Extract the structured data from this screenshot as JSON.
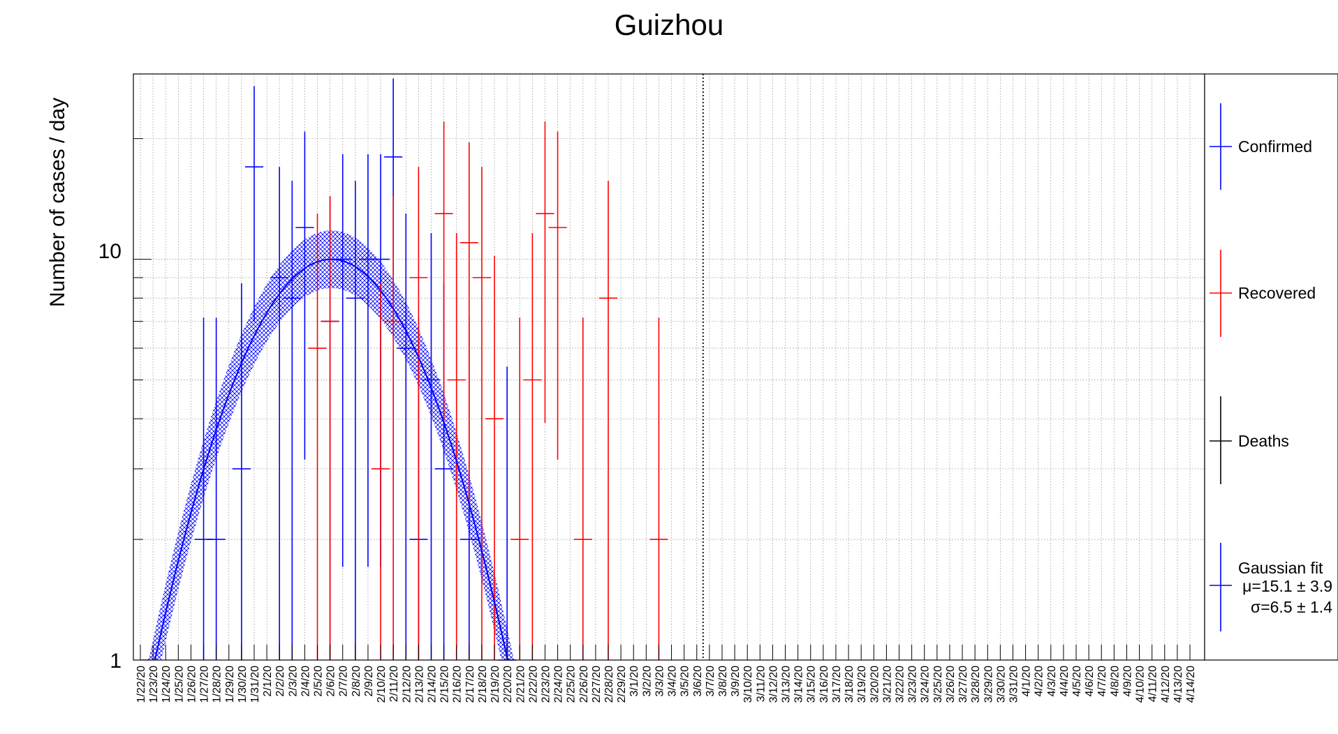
{
  "chart_data": {
    "type": "scatter",
    "title": "Guizhou",
    "ylabel": "Number of cases / day",
    "xlabel": "",
    "y_scale": "log",
    "ylim": [
      1,
      29
    ],
    "y_ticks": [
      "1",
      "10"
    ],
    "grid": true,
    "legend_position": "right",
    "colors": {
      "confirmed": "#0000ff",
      "recovered": "#ff0000",
      "deaths": "#000000",
      "fit": "#0000ff"
    },
    "categories": [
      "1/22/20",
      "1/23/20",
      "1/24/20",
      "1/25/20",
      "1/26/20",
      "1/27/20",
      "1/28/20",
      "1/29/20",
      "1/30/20",
      "1/31/20",
      "2/1/20",
      "2/2/20",
      "2/3/20",
      "2/4/20",
      "2/5/20",
      "2/6/20",
      "2/7/20",
      "2/8/20",
      "2/9/20",
      "2/10/20",
      "2/11/20",
      "2/12/20",
      "2/13/20",
      "2/14/20",
      "2/15/20",
      "2/16/20",
      "2/17/20",
      "2/18/20",
      "2/19/20",
      "2/20/20",
      "2/21/20",
      "2/22/20",
      "2/23/20",
      "2/24/20",
      "2/25/20",
      "2/26/20",
      "2/27/20",
      "2/28/20",
      "2/29/20",
      "3/1/20",
      "3/2/20",
      "3/3/20",
      "3/4/20",
      "3/5/20",
      "3/6/20",
      "3/7/20",
      "3/8/20",
      "3/9/20",
      "3/10/20",
      "3/11/20",
      "3/12/20",
      "3/13/20",
      "3/14/20",
      "3/15/20",
      "3/16/20",
      "3/17/20",
      "3/18/20",
      "3/19/20",
      "3/20/20",
      "3/21/20",
      "3/22/20",
      "3/23/20",
      "3/24/20",
      "3/25/20",
      "3/26/20",
      "3/27/20",
      "3/28/20",
      "3/29/20",
      "3/30/20",
      "3/31/20",
      "4/1/20",
      "4/2/20",
      "4/3/20",
      "4/4/20",
      "4/5/20",
      "4/6/20",
      "4/7/20",
      "4/8/20",
      "4/9/20",
      "4/10/20",
      "4/11/20",
      "4/12/20",
      "4/13/20",
      "4/14/20"
    ],
    "series": [
      {
        "name": "Confirmed",
        "points": [
          {
            "x": "1/27/20",
            "y": 2
          },
          {
            "x": "1/28/20",
            "y": 2
          },
          {
            "x": "1/30/20",
            "y": 3
          },
          {
            "x": "1/31/20",
            "y": 17
          },
          {
            "x": "2/2/20",
            "y": 9
          },
          {
            "x": "2/3/20",
            "y": 8
          },
          {
            "x": "2/4/20",
            "y": 12
          },
          {
            "x": "2/6/20",
            "y": 7
          },
          {
            "x": "2/7/20",
            "y": 10
          },
          {
            "x": "2/8/20",
            "y": 8
          },
          {
            "x": "2/9/20",
            "y": 10
          },
          {
            "x": "2/10/20",
            "y": 10
          },
          {
            "x": "2/11/20",
            "y": 18
          },
          {
            "x": "2/12/20",
            "y": 6
          },
          {
            "x": "2/13/20",
            "y": 2
          },
          {
            "x": "2/14/20",
            "y": 5
          },
          {
            "x": "2/15/20",
            "y": 3
          },
          {
            "x": "2/17/20",
            "y": 2
          },
          {
            "x": "2/20/20",
            "y": 1
          }
        ]
      },
      {
        "name": "Recovered",
        "points": [
          {
            "x": "2/5/20",
            "y": 6
          },
          {
            "x": "2/6/20",
            "y": 7
          },
          {
            "x": "2/10/20",
            "y": 3
          },
          {
            "x": "2/11/20",
            "y": 7
          },
          {
            "x": "2/13/20",
            "y": 9
          },
          {
            "x": "2/15/20",
            "y": 13
          },
          {
            "x": "2/16/20",
            "y": 5
          },
          {
            "x": "2/17/20",
            "y": 11
          },
          {
            "x": "2/18/20",
            "y": 9
          },
          {
            "x": "2/19/20",
            "y": 4
          },
          {
            "x": "2/21/20",
            "y": 2
          },
          {
            "x": "2/22/20",
            "y": 5
          },
          {
            "x": "2/23/20",
            "y": 13
          },
          {
            "x": "2/24/20",
            "y": 12
          },
          {
            "x": "2/26/20",
            "y": 2
          },
          {
            "x": "2/28/20",
            "y": 8
          },
          {
            "x": "3/3/20",
            "y": 2
          }
        ]
      },
      {
        "name": "Deaths",
        "points": []
      }
    ],
    "fit": {
      "name": "Gaussian fit",
      "mu_label": "μ=15.1 ± 3.9",
      "sigma_label": "σ=6.5 ± 1.4",
      "mu": 15.1,
      "sigma": 6.5,
      "amplitude": 10.0,
      "band_factor": 1.18
    },
    "marker_date": "3/6/20",
    "legend": [
      "Confirmed",
      "Recovered",
      "Deaths",
      "Gaussian fit"
    ]
  }
}
